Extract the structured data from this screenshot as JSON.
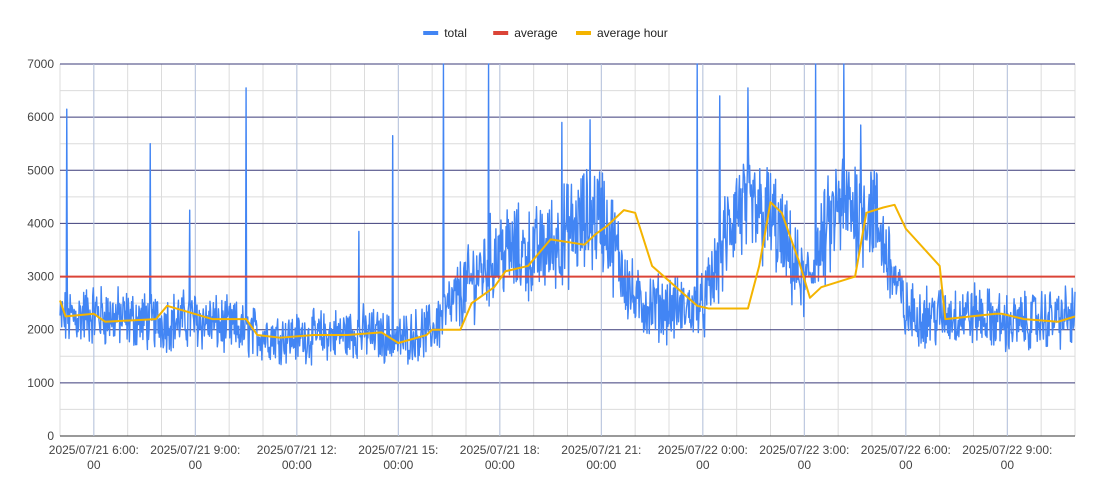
{
  "chart_data": {
    "type": "line",
    "title": "",
    "xlabel": "",
    "ylabel": "",
    "ylim": [
      0,
      7000
    ],
    "yticks": [
      0,
      1000,
      2000,
      3000,
      4000,
      5000,
      6000,
      7000
    ],
    "xrange": [
      "2025-07-21T05:00",
      "2025-07-22T11:00"
    ],
    "xticks": [
      {
        "time": "2025-07-21T06:00",
        "label_line1": "2025/07/21 6:00:",
        "label_line2": "00"
      },
      {
        "time": "2025-07-21T09:00",
        "label_line1": "2025/07/21 9:00:",
        "label_line2": "00"
      },
      {
        "time": "2025-07-21T12:00",
        "label_line1": "2025/07/21 12:",
        "label_line2": "00:00"
      },
      {
        "time": "2025-07-21T15:00",
        "label_line1": "2025/07/21 15:",
        "label_line2": "00:00"
      },
      {
        "time": "2025-07-21T18:00",
        "label_line1": "2025/07/21 18:",
        "label_line2": "00:00"
      },
      {
        "time": "2025-07-21T21:00",
        "label_line1": "2025/07/21 21:",
        "label_line2": "00:00"
      },
      {
        "time": "2025-07-22T00:00",
        "label_line1": "2025/07/22 0:00:",
        "label_line2": "00"
      },
      {
        "time": "2025-07-22T03:00",
        "label_line1": "2025/07/22 3:00:",
        "label_line2": "00"
      },
      {
        "time": "2025-07-22T06:00",
        "label_line1": "2025/07/22 6:00:",
        "label_line2": "00"
      },
      {
        "time": "2025-07-22T09:00",
        "label_line1": "2025/07/22 9:00:",
        "label_line2": "00"
      }
    ],
    "grid": true,
    "legend_position": "top-center",
    "series": [
      {
        "name": "total",
        "color": "#4285f4",
        "style": "noisy",
        "x": [
          "2025-07-21T05:00",
          "2025-07-21T06:00",
          "2025-07-21T07:00",
          "2025-07-21T08:00",
          "2025-07-21T09:00",
          "2025-07-21T10:00",
          "2025-07-21T11:00",
          "2025-07-21T12:00",
          "2025-07-21T13:00",
          "2025-07-21T14:00",
          "2025-07-21T15:00",
          "2025-07-21T16:00",
          "2025-07-21T17:00",
          "2025-07-21T18:00",
          "2025-07-21T19:00",
          "2025-07-21T20:00",
          "2025-07-21T21:00",
          "2025-07-21T22:00",
          "2025-07-21T23:00",
          "2025-07-22T00:00",
          "2025-07-22T01:00",
          "2025-07-22T02:00",
          "2025-07-22T03:00",
          "2025-07-22T04:00",
          "2025-07-22T05:00",
          "2025-07-22T06:00",
          "2025-07-22T07:00",
          "2025-07-22T08:00",
          "2025-07-22T09:00",
          "2025-07-22T10:00",
          "2025-07-22T11:00"
        ],
        "values": [
          2200,
          2300,
          2200,
          2150,
          2200,
          2050,
          1900,
          1850,
          1900,
          1950,
          1800,
          2000,
          2800,
          3500,
          3400,
          3800,
          4200,
          2500,
          2400,
          2400,
          4300,
          4100,
          2800,
          4300,
          4300,
          2300,
          2250,
          2300,
          2100,
          2200,
          2250
        ],
        "spikes": [
          {
            "time": "2025-07-21T05:12",
            "value": 6150
          },
          {
            "time": "2025-07-21T07:40",
            "value": 5500
          },
          {
            "time": "2025-07-21T08:50",
            "value": 4250
          },
          {
            "time": "2025-07-21T10:30",
            "value": 6550
          },
          {
            "time": "2025-07-21T13:50",
            "value": 3850
          },
          {
            "time": "2025-07-21T14:50",
            "value": 5650
          },
          {
            "time": "2025-07-21T16:20",
            "value": 7000
          },
          {
            "time": "2025-07-21T17:40",
            "value": 7000
          },
          {
            "time": "2025-07-21T19:50",
            "value": 5900
          },
          {
            "time": "2025-07-21T20:40",
            "value": 5950
          },
          {
            "time": "2025-07-21T23:50",
            "value": 7000
          },
          {
            "time": "2025-07-22T00:30",
            "value": 6400
          },
          {
            "time": "2025-07-22T01:20",
            "value": 6550
          },
          {
            "time": "2025-07-22T03:20",
            "value": 7000
          },
          {
            "time": "2025-07-22T04:10",
            "value": 7000
          },
          {
            "time": "2025-07-22T04:40",
            "value": 5850
          }
        ]
      },
      {
        "name": "average",
        "color": "#db4437",
        "style": "line",
        "x": [
          "2025-07-21T05:00",
          "2025-07-22T11:00"
        ],
        "values": [
          3000,
          3000
        ]
      },
      {
        "name": "average hour",
        "color": "#f4b400",
        "style": "line",
        "x": [
          "2025-07-21T05:00",
          "2025-07-21T05:10",
          "2025-07-21T06:00",
          "2025-07-21T06:20",
          "2025-07-21T07:50",
          "2025-07-21T08:10",
          "2025-07-21T09:30",
          "2025-07-21T10:30",
          "2025-07-21T10:50",
          "2025-07-21T11:30",
          "2025-07-21T12:30",
          "2025-07-21T13:30",
          "2025-07-21T14:30",
          "2025-07-21T15:00",
          "2025-07-21T15:50",
          "2025-07-21T16:00",
          "2025-07-21T16:50",
          "2025-07-21T17:10",
          "2025-07-21T17:50",
          "2025-07-21T18:10",
          "2025-07-21T18:50",
          "2025-07-21T19:30",
          "2025-07-21T20:30",
          "2025-07-21T20:50",
          "2025-07-21T21:10",
          "2025-07-21T21:40",
          "2025-07-21T22:00",
          "2025-07-21T22:30",
          "2025-07-21T23:50",
          "2025-07-22T00:10",
          "2025-07-22T00:30",
          "2025-07-22T01:20",
          "2025-07-22T01:40",
          "2025-07-22T02:00",
          "2025-07-22T02:20",
          "2025-07-22T02:50",
          "2025-07-22T03:10",
          "2025-07-22T03:30",
          "2025-07-22T04:30",
          "2025-07-22T04:50",
          "2025-07-22T05:20",
          "2025-07-22T05:40",
          "2025-07-22T06:00",
          "2025-07-22T07:00",
          "2025-07-22T07:10",
          "2025-07-22T08:40",
          "2025-07-22T08:50",
          "2025-07-22T09:30",
          "2025-07-22T10:30",
          "2025-07-22T11:00"
        ],
        "values": [
          2550,
          2250,
          2300,
          2150,
          2200,
          2450,
          2200,
          2200,
          1900,
          1850,
          1900,
          1900,
          1950,
          1750,
          1900,
          2000,
          2000,
          2500,
          2800,
          3100,
          3200,
          3700,
          3600,
          3800,
          3950,
          4250,
          4200,
          3200,
          2450,
          2400,
          2400,
          2400,
          3200,
          4400,
          4200,
          3300,
          2600,
          2800,
          3000,
          4200,
          4300,
          4350,
          3900,
          3200,
          2200,
          2300,
          2300,
          2200,
          2150,
          2250
        ]
      }
    ]
  }
}
